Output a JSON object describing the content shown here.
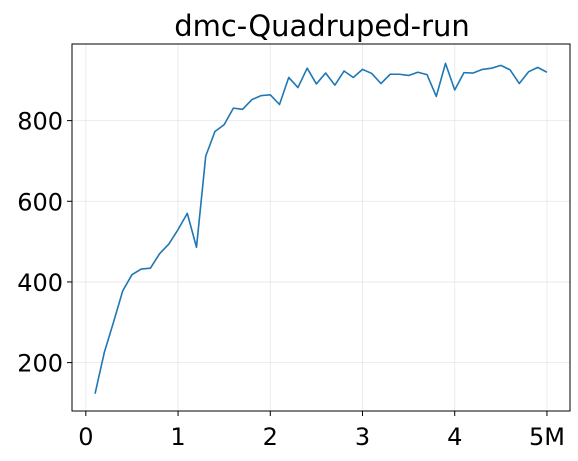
{
  "chart_data": {
    "type": "line",
    "title": "dmc-Quadruped-run",
    "xlabel": "",
    "ylabel": "",
    "xlim": [
      -0.15,
      5.25
    ],
    "ylim": [
      80,
      990
    ],
    "grid": true,
    "x_ticks": [
      0,
      1,
      2,
      3,
      4,
      5
    ],
    "x_tick_labels": [
      "0",
      "1",
      "2",
      "3",
      "4",
      "5M"
    ],
    "y_ticks": [
      200,
      400,
      600,
      800
    ],
    "y_tick_labels": [
      "200",
      "400",
      "600",
      "800"
    ],
    "series": [
      {
        "color": "#1f77b4",
        "x": [
          0.1,
          0.2,
          0.3,
          0.4,
          0.5,
          0.6,
          0.7,
          0.8,
          0.9,
          1.0,
          1.1,
          1.2,
          1.3,
          1.4,
          1.5,
          1.6,
          1.7,
          1.8,
          1.9,
          2.0,
          2.1,
          2.2,
          2.3,
          2.4,
          2.5,
          2.6,
          2.7,
          2.8,
          2.9,
          3.0,
          3.1,
          3.2,
          3.3,
          3.4,
          3.5,
          3.6,
          3.7,
          3.8,
          3.9,
          4.0,
          4.1,
          4.2,
          4.3,
          4.4,
          4.5,
          4.6,
          4.7,
          4.8,
          4.9,
          5.0
        ],
        "y": [
          123,
          225,
          300,
          378,
          418,
          432,
          434,
          470,
          494,
          530,
          570,
          486,
          712,
          773,
          790,
          831,
          828,
          852,
          862,
          864,
          840,
          907,
          882,
          930,
          891,
          918,
          888,
          923,
          907,
          927,
          917,
          892,
          915,
          915,
          912,
          920,
          914,
          860,
          942,
          876,
          919,
          918,
          927,
          930,
          937,
          926,
          892,
          921,
          932,
          920
        ]
      }
    ]
  }
}
